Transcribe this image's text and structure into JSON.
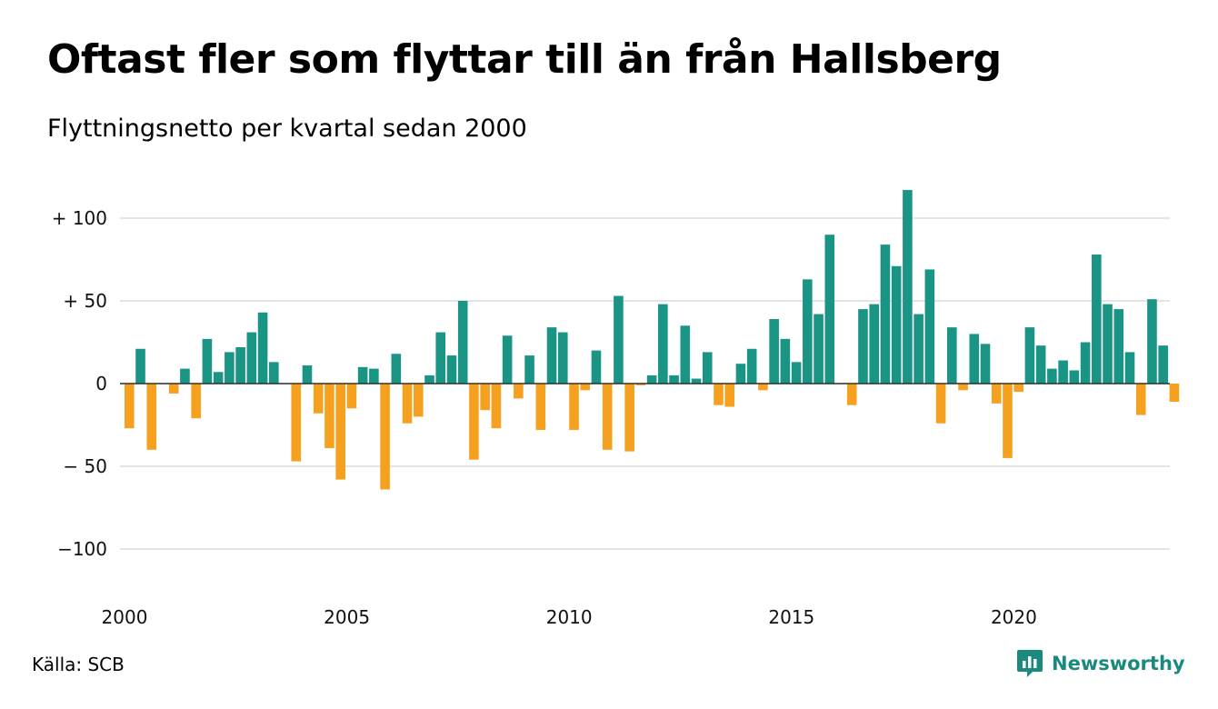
{
  "title": "Oftast fler som flyttar till än från Hallsberg",
  "subtitle": "Flyttningsnetto per kvartal sedan 2000",
  "source": "Källa: SCB",
  "brand": "Newsworthy",
  "colors": {
    "positive": "#1a9485",
    "negative": "#f5a01e",
    "grid": "#dcdcdc",
    "brand": "#1a8a7f"
  },
  "chart_data": {
    "type": "bar",
    "title": "Oftast fler som flyttar till än från Hallsberg",
    "subtitle": "Flyttningsnetto per kvartal sedan 2000",
    "xlabel": "",
    "ylabel": "",
    "ylim": [
      -130,
      125
    ],
    "grid": true,
    "legend": "none",
    "y_ticks": [
      {
        "value": 100,
        "label": "+ 100"
      },
      {
        "value": 50,
        "label": "+  50"
      },
      {
        "value": 0,
        "label": "0"
      },
      {
        "value": -50,
        "label": "− 50"
      },
      {
        "value": -100,
        "label": "−100"
      }
    ],
    "x_ticks": [
      "2000",
      "2005",
      "2010",
      "2015",
      "2020"
    ],
    "start": {
      "year": 2000,
      "quarter": 1
    },
    "values": [
      -27,
      21,
      -40,
      0,
      -6,
      9,
      -21,
      27,
      7,
      19,
      22,
      31,
      43,
      13,
      0,
      -47,
      11,
      -18,
      -39,
      -58,
      -15,
      10,
      9,
      -64,
      18,
      -24,
      -20,
      5,
      31,
      17,
      50,
      -46,
      -16,
      -27,
      29,
      -9,
      17,
      -28,
      34,
      31,
      -28,
      -4,
      20,
      -40,
      53,
      -41,
      -1,
      5,
      48,
      5,
      35,
      3,
      19,
      -13,
      -14,
      12,
      21,
      -4,
      39,
      27,
      13,
      63,
      42,
      90,
      0,
      -13,
      45,
      48,
      84,
      71,
      117,
      42,
      69,
      -24,
      34,
      -4,
      30,
      24,
      -12,
      -45,
      -5,
      34,
      23,
      9,
      14,
      8,
      25,
      78,
      48,
      45,
      19,
      -19,
      51,
      23,
      -11
    ]
  }
}
